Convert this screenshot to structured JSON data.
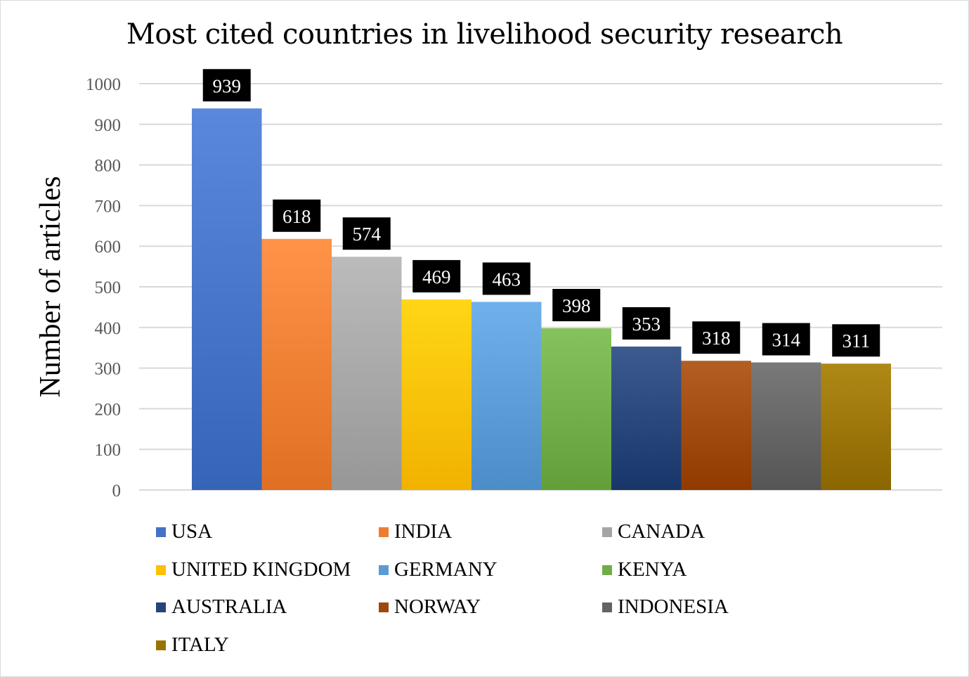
{
  "chart_data": {
    "type": "bar",
    "title": "Most cited countries in livelihood security research",
    "xlabel": "",
    "ylabel": "Number of articles",
    "ylim": [
      0,
      1000
    ],
    "yticks": [
      "0",
      "100",
      "200",
      "300",
      "400",
      "500",
      "600",
      "700",
      "800",
      "900",
      "1000"
    ],
    "grid": true,
    "legend_position": "bottom",
    "categories": [
      "USA",
      "INDIA",
      "CANADA",
      "UNITED KINGDOM",
      "GERMANY",
      "KENYA",
      "AUSTRALIA",
      "NORWAY",
      "INDONESIA",
      "ITALY"
    ],
    "values": [
      939,
      618,
      574,
      469,
      463,
      398,
      353,
      318,
      314,
      311
    ],
    "data_labels": [
      "939",
      "618",
      "574",
      "469",
      "463",
      "398",
      "353",
      "318",
      "314",
      "311"
    ],
    "colors": [
      "#4472c4",
      "#ed7d31",
      "#a5a5a5",
      "#ffc000",
      "#5b9bd5",
      "#70ad47",
      "#264478",
      "#9e480e",
      "#636363",
      "#997300"
    ]
  }
}
